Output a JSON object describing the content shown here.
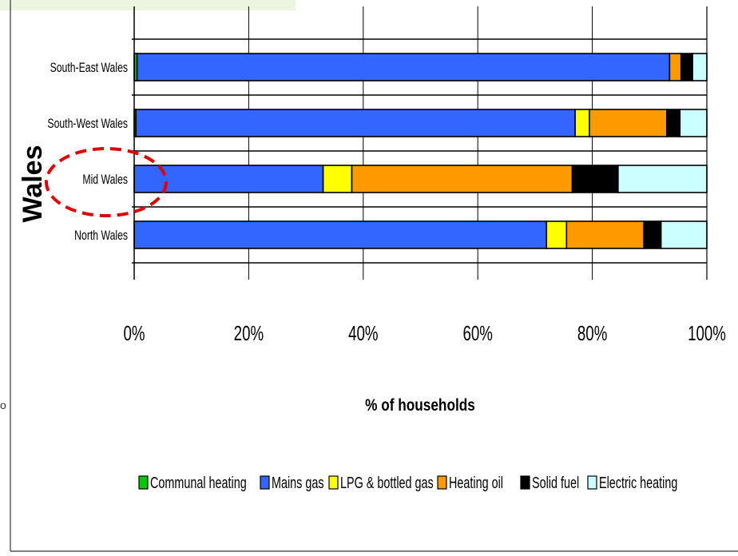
{
  "chart_data": {
    "type": "bar",
    "orientation": "horizontal",
    "stacked": true,
    "percent_stacked": true,
    "region_label": "Wales",
    "categories": [
      "South-East Wales",
      "South-West Wales",
      "Mid Wales",
      "North Wales"
    ],
    "xlabel": "% of households",
    "xticks": [
      "0%",
      "20%",
      "40%",
      "60%",
      "80%",
      "100%"
    ],
    "xlim": [
      0,
      100
    ],
    "grid": true,
    "legend_position": "bottom",
    "highlighted_category": "Mid Wales",
    "series": [
      {
        "name": "Communal heating",
        "color": "#00cc00",
        "values": [
          0.5,
          0.3,
          0,
          0
        ]
      },
      {
        "name": "Mains gas",
        "color": "#3366ff",
        "values": [
          93,
          76.7,
          33,
          72
        ]
      },
      {
        "name": "LPG & bottled gas",
        "color": "#ffff00",
        "values": [
          0,
          2.5,
          5,
          3.5
        ]
      },
      {
        "name": "Heating oil",
        "color": "#ff9900",
        "values": [
          2,
          13.5,
          38.5,
          13.5
        ]
      },
      {
        "name": "Solid fuel",
        "color": "#000000",
        "values": [
          2,
          2.3,
          8,
          3
        ]
      },
      {
        "name": "Electric heating",
        "color": "#ccffff",
        "values": [
          2.5,
          4.7,
          15.5,
          8
        ]
      }
    ]
  },
  "colors": {
    "accent_bar": "#ebf5df",
    "highlight_circle": "#e00000"
  }
}
